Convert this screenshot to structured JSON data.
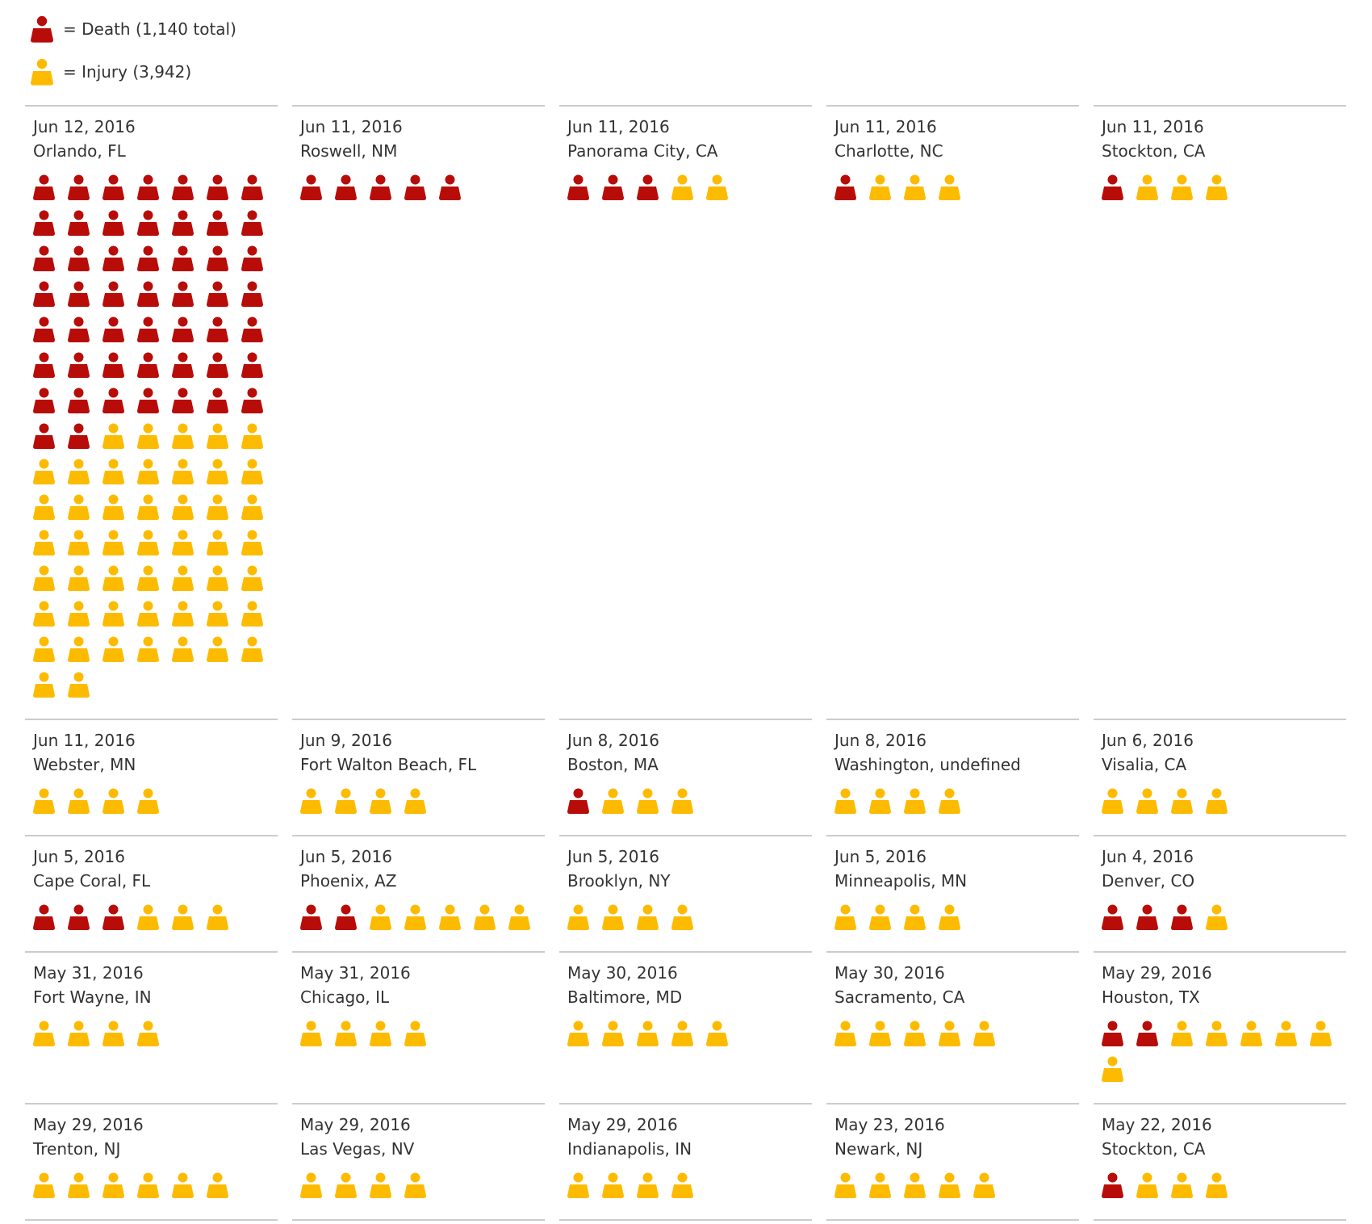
{
  "colors": {
    "death": "#b80c09",
    "injury": "#fdbb00",
    "text": "#333333",
    "rule": "#cccccc"
  },
  "legend": {
    "death_label": "= Death (1,140 total)",
    "injury_label": "= Injury (3,942)"
  },
  "chart_data": {
    "type": "table",
    "title": "",
    "unit": "one icon per person",
    "series": [
      {
        "name": "Death",
        "color": "#b80c09"
      },
      {
        "name": "Injury",
        "color": "#fdbb00"
      }
    ],
    "incidents": [
      {
        "date": "Jun 12, 2016",
        "place": "Orlando, FL",
        "deaths": 51,
        "injuries": 49
      },
      {
        "date": "Jun 11, 2016",
        "place": "Roswell, NM",
        "deaths": 5,
        "injuries": 0
      },
      {
        "date": "Jun 11, 2016",
        "place": "Panorama City, CA",
        "deaths": 3,
        "injuries": 2
      },
      {
        "date": "Jun 11, 2016",
        "place": "Charlotte, NC",
        "deaths": 1,
        "injuries": 3
      },
      {
        "date": "Jun 11, 2016",
        "place": "Stockton, CA",
        "deaths": 1,
        "injuries": 3
      },
      {
        "date": "Jun 11, 2016",
        "place": "Webster, MN",
        "deaths": 0,
        "injuries": 4
      },
      {
        "date": "Jun 9, 2016",
        "place": "Fort Walton Beach, FL",
        "deaths": 0,
        "injuries": 4
      },
      {
        "date": "Jun 8, 2016",
        "place": "Boston, MA",
        "deaths": 1,
        "injuries": 3
      },
      {
        "date": "Jun 8, 2016",
        "place": "Washington, undefined",
        "deaths": 0,
        "injuries": 4
      },
      {
        "date": "Jun 6, 2016",
        "place": "Visalia, CA",
        "deaths": 0,
        "injuries": 4
      },
      {
        "date": "Jun 5, 2016",
        "place": "Cape Coral, FL",
        "deaths": 3,
        "injuries": 3
      },
      {
        "date": "Jun 5, 2016",
        "place": "Phoenix, AZ",
        "deaths": 2,
        "injuries": 5
      },
      {
        "date": "Jun 5, 2016",
        "place": "Brooklyn, NY",
        "deaths": 0,
        "injuries": 4
      },
      {
        "date": "Jun 5, 2016",
        "place": "Minneapolis, MN",
        "deaths": 0,
        "injuries": 4
      },
      {
        "date": "Jun 4, 2016",
        "place": "Denver, CO",
        "deaths": 3,
        "injuries": 1
      },
      {
        "date": "May 31, 2016",
        "place": "Fort Wayne, IN",
        "deaths": 0,
        "injuries": 4
      },
      {
        "date": "May 31, 2016",
        "place": "Chicago, IL",
        "deaths": 0,
        "injuries": 4
      },
      {
        "date": "May 30, 2016",
        "place": "Baltimore, MD",
        "deaths": 0,
        "injuries": 5
      },
      {
        "date": "May 30, 2016",
        "place": "Sacramento, CA",
        "deaths": 0,
        "injuries": 5
      },
      {
        "date": "May 29, 2016",
        "place": "Houston, TX",
        "deaths": 2,
        "injuries": 6
      },
      {
        "date": "May 29, 2016",
        "place": "Trenton, NJ",
        "deaths": 0,
        "injuries": 6
      },
      {
        "date": "May 29, 2016",
        "place": "Las Vegas, NV",
        "deaths": 0,
        "injuries": 4
      },
      {
        "date": "May 29, 2016",
        "place": "Indianapolis, IN",
        "deaths": 0,
        "injuries": 4
      },
      {
        "date": "May 23, 2016",
        "place": "Newark, NJ",
        "deaths": 0,
        "injuries": 5
      },
      {
        "date": "May 22, 2016",
        "place": "Stockton, CA",
        "deaths": 1,
        "injuries": 3
      }
    ]
  }
}
